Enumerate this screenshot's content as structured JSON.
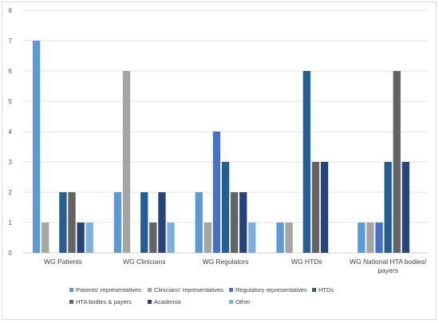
{
  "chart_data": {
    "type": "bar",
    "title": "",
    "xlabel": "",
    "ylabel": "",
    "ylim": [
      0,
      8
    ],
    "yticks": [
      0,
      1,
      2,
      3,
      4,
      5,
      6,
      7,
      8
    ],
    "grid": true,
    "legend_position": "bottom",
    "categories": [
      [
        "WG Patients"
      ],
      [
        "WG Clinicians"
      ],
      [
        "WG Regulators"
      ],
      [
        "WG HTDs"
      ],
      [
        "WG National HTA bodies/",
        "payers"
      ]
    ],
    "series": [
      {
        "name": "Patients' representatives",
        "color": "#5b9bd5",
        "values": [
          7,
          2,
          2,
          1,
          1
        ]
      },
      {
        "name": "Clinicians' representatives",
        "color": "#a5a5a5",
        "values": [
          1,
          6,
          1,
          1,
          1
        ]
      },
      {
        "name": "Regulatory representatives",
        "color": "#4472c4",
        "values": [
          0,
          0,
          4,
          0,
          1
        ]
      },
      {
        "name": "HTDs",
        "color": "#255e91",
        "values": [
          2,
          2,
          3,
          6,
          3
        ]
      },
      {
        "name": "HTA bodies & payers",
        "color": "#636363",
        "values": [
          2,
          1,
          2,
          3,
          6
        ]
      },
      {
        "name": "Academia",
        "color": "#264478",
        "values": [
          1,
          2,
          2,
          3,
          3
        ]
      },
      {
        "name": "Other",
        "color": "#7cafdd",
        "values": [
          1,
          1,
          1,
          0,
          0
        ]
      }
    ]
  }
}
